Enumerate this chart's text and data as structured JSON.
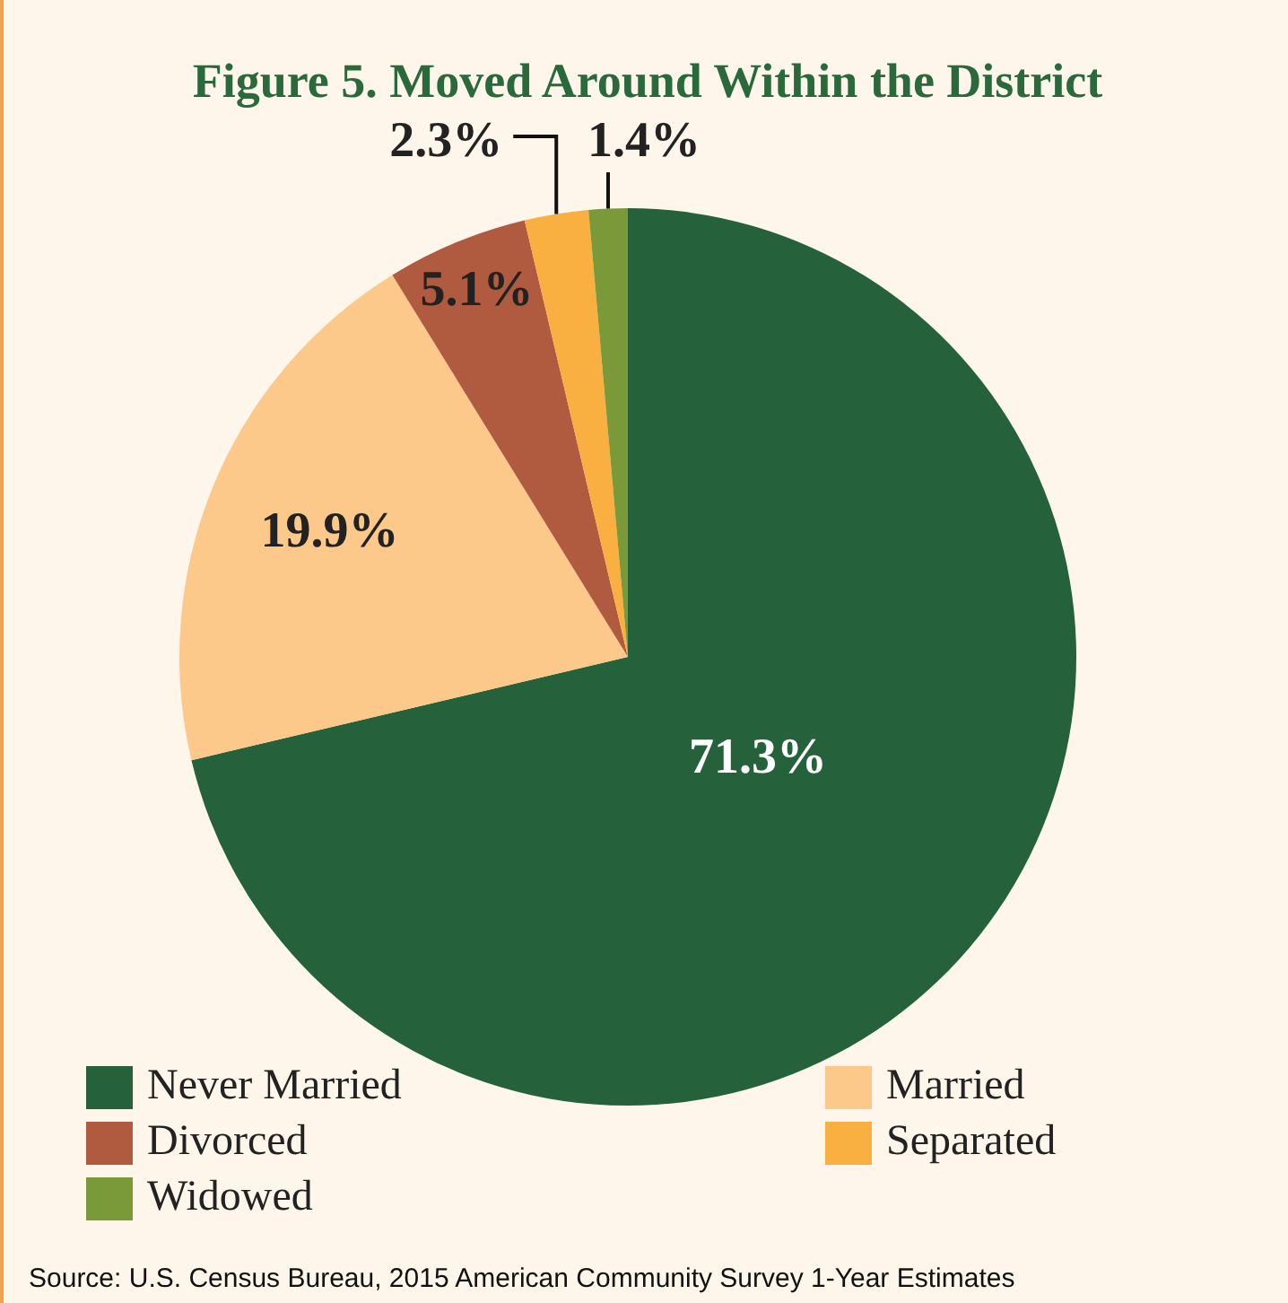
{
  "chart_data": {
    "type": "pie",
    "title": "Figure 5. Moved Around Within the District",
    "categories": [
      "Never Married",
      "Married",
      "Divorced",
      "Separated",
      "Widowed"
    ],
    "values": [
      71.3,
      19.9,
      5.1,
      2.3,
      1.4
    ],
    "value_labels": [
      "71.3%",
      "19.9%",
      "5.1%",
      "2.3%",
      "1.4%"
    ],
    "colors": [
      "#25613a",
      "#fcc98a",
      "#b05a40",
      "#f9b040",
      "#7a9a3a"
    ],
    "legend": "bottom",
    "annotations": [
      "Source: U.S. Census Bureau, 2015 American Community Survey 1-Year Estimates"
    ]
  }
}
